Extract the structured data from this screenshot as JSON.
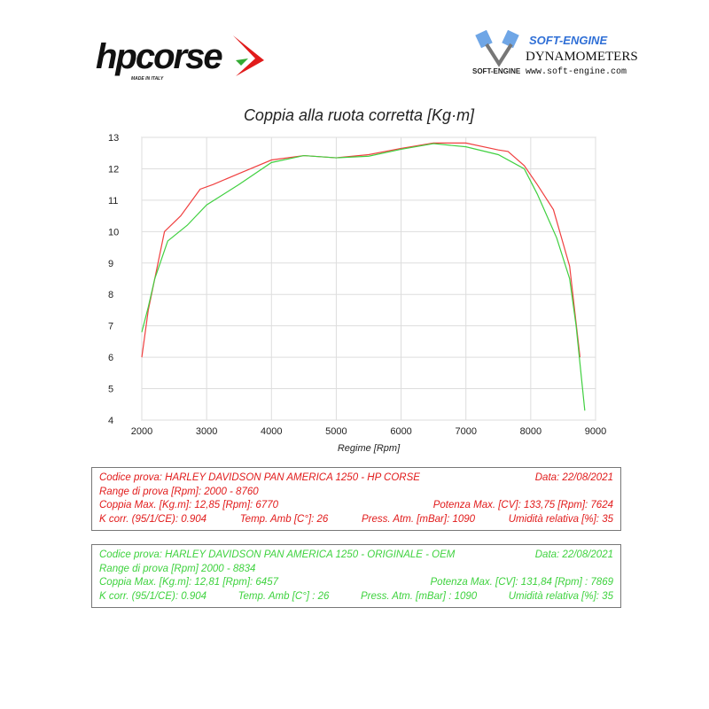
{
  "logos": {
    "left": {
      "text": "hpcorse",
      "tagline": "MADE IN ITALY"
    },
    "right": {
      "brand": "SOFT-ENGINE",
      "line": "DYNAMOMETERS",
      "url": "www.soft-engine.com",
      "mark": "SOFT-ENGINE"
    }
  },
  "chart_data": {
    "type": "line",
    "title": "Coppia alla ruota corretta [Kg·m]",
    "xlabel": "Regime [Rpm]",
    "ylabel": "",
    "xlim": [
      2000,
      9000
    ],
    "ylim": [
      4,
      13
    ],
    "xticks": [
      2000,
      3000,
      4000,
      5000,
      6000,
      7000,
      8000,
      9000
    ],
    "yticks": [
      4,
      5,
      6,
      7,
      8,
      9,
      10,
      11,
      12,
      13
    ],
    "grid": true,
    "series": [
      {
        "color": "#f04040",
        "x": [
          2000,
          2100,
          2200,
          2350,
          2600,
          2900,
          3100,
          3500,
          4000,
          4500,
          5000,
          5500,
          6000,
          6500,
          7000,
          7500,
          7650,
          7900,
          8100,
          8350,
          8600,
          8760
        ],
        "y": [
          6.0,
          7.5,
          8.5,
          10.0,
          10.5,
          11.35,
          11.5,
          11.85,
          12.28,
          12.42,
          12.35,
          12.45,
          12.65,
          12.82,
          12.82,
          12.6,
          12.55,
          12.1,
          11.5,
          10.7,
          8.9,
          6.0
        ]
      },
      {
        "color": "#40d040",
        "x": [
          2000,
          2100,
          2200,
          2400,
          2700,
          3000,
          3500,
          4000,
          4500,
          5000,
          5500,
          6000,
          6500,
          7000,
          7500,
          7900,
          8100,
          8400,
          8600,
          8700,
          8834
        ],
        "y": [
          6.8,
          7.6,
          8.5,
          9.7,
          10.2,
          10.85,
          11.5,
          12.2,
          12.42,
          12.35,
          12.4,
          12.62,
          12.8,
          12.7,
          12.45,
          12.0,
          11.2,
          9.8,
          8.5,
          7.0,
          4.3
        ]
      }
    ]
  },
  "tests": [
    {
      "color": "#e11b1b",
      "codice": "Codice prova: HARLEY DAVIDSON  PAN AMERICA 1250 - HP CORSE",
      "data": "Data: 22/08/2021",
      "range": "Range di prova  [Rpm]: 2000 - 8760",
      "coppia": "Coppia Max. [Kg.m]:  12,85 [Rpm]: 6770",
      "potenza": "Potenza Max. [CV]:  133,75 [Rpm]: 7624",
      "kcorr": "K corr. (95/1/CE): 0.904",
      "temp": "Temp. Amb  [C°]: 26",
      "press": "Press. Atm.  [mBar]: 1090",
      "umid": "Umidità relativa [%]: 35"
    },
    {
      "color": "#3ed23e",
      "codice": "Codice prova: HARLEY DAVIDSON  PAN AMERICA 1250 - ORIGINALE - OEM",
      "data": "Data: 22/08/2021",
      "range": "Range di prova [Rpm] 2000 - 8834",
      "coppia": "Coppia Max.  [Kg.m]:  12,81 [Rpm]: 6457",
      "potenza": "Potenza Max. [CV]:  131,84  [Rpm] : 7869",
      "kcorr": "K corr. (95/1/CE): 0.904",
      "temp": "Temp. Amb [C°] : 26",
      "press": "Press. Atm. [mBar] : 1090",
      "umid": "Umidità relativa [%]: 35"
    }
  ]
}
